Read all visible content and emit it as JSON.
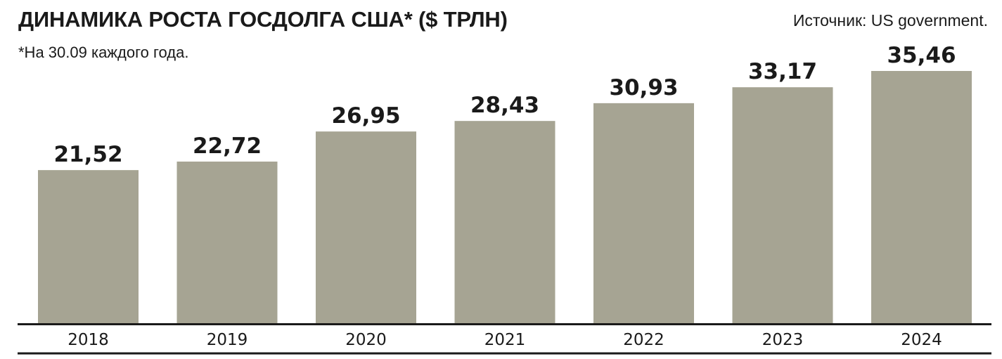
{
  "header": {
    "title": "ДИНАМИКА РОСТА ГОСДОЛГА США* ($ ТРЛН)",
    "subtitle": "*На 30.09 каждого года.",
    "source": "Источник: US government."
  },
  "colors": {
    "bar": "#a6a493",
    "axis": "#1a1a1a",
    "text": "#1a1a1a"
  },
  "chart_data": {
    "type": "bar",
    "title": "ДИНАМИКА РОСТА ГОСДОЛГА США* ($ ТРЛН)",
    "subtitle": "*На 30.09 каждого года.",
    "xlabel": "",
    "ylabel": "",
    "categories": [
      "2018",
      "2019",
      "2020",
      "2021",
      "2022",
      "2023",
      "2024"
    ],
    "values": [
      21.52,
      22.72,
      26.95,
      28.43,
      30.93,
      33.17,
      35.46
    ],
    "value_labels": [
      "21,52",
      "22,72",
      "26,95",
      "28,43",
      "30,93",
      "33,17",
      "35,46"
    ],
    "ylim": [
      0,
      35.46
    ],
    "grid": false,
    "legend": "none"
  }
}
